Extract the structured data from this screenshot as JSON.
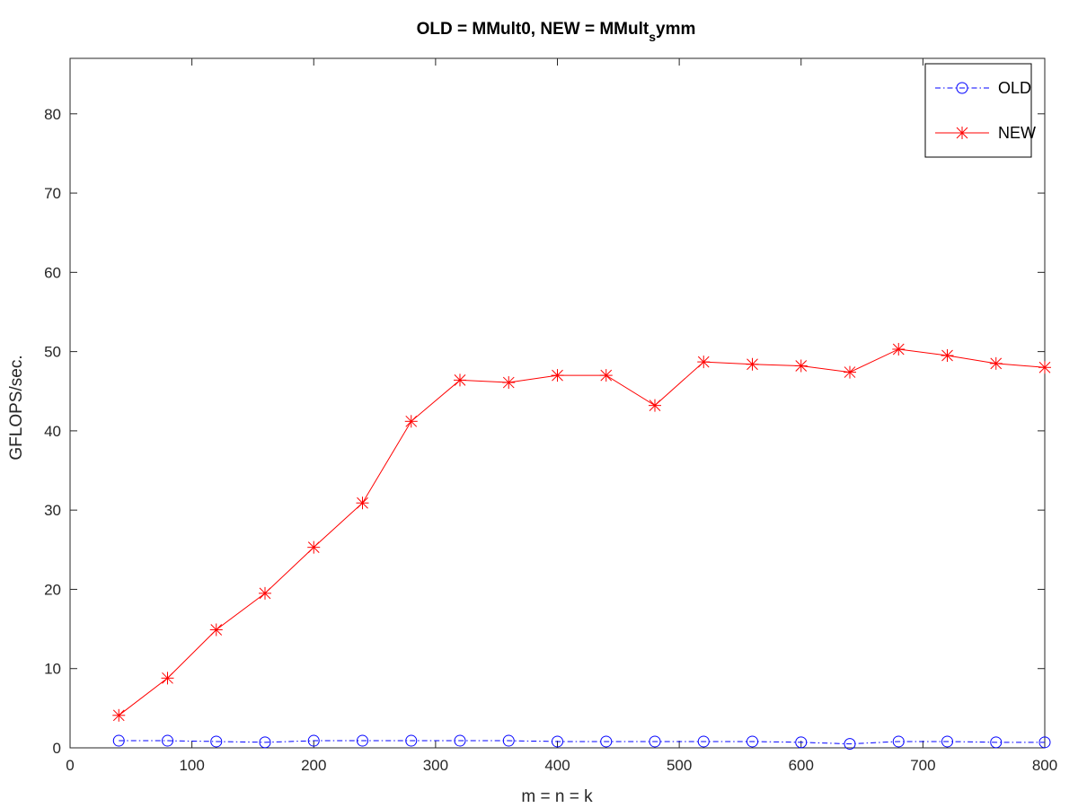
{
  "chart_data": {
    "type": "line",
    "title": "OLD = MMult0, NEW = MMult",
    "title_subscript": "s",
    "title_suffix": "ymm",
    "xlabel": "m = n = k",
    "ylabel": "GFLOPS/sec.",
    "xlim": [
      0,
      800
    ],
    "ylim": [
      0,
      87
    ],
    "xticks": [
      0,
      100,
      200,
      300,
      400,
      500,
      600,
      700,
      800
    ],
    "yticks": [
      0,
      10,
      20,
      30,
      40,
      50,
      60,
      70,
      80
    ],
    "grid": false,
    "legend_position": "top-right",
    "x": [
      40,
      80,
      120,
      160,
      200,
      240,
      280,
      320,
      360,
      400,
      440,
      480,
      520,
      560,
      600,
      640,
      680,
      720,
      760,
      800
    ],
    "series": [
      {
        "name": "OLD",
        "color": "#0000ff",
        "line_style": "dash-dot",
        "marker": "circle",
        "values": [
          0.9,
          0.9,
          0.8,
          0.7,
          0.9,
          0.9,
          0.9,
          0.9,
          0.9,
          0.8,
          0.8,
          0.8,
          0.8,
          0.8,
          0.7,
          0.5,
          0.8,
          0.8,
          0.7,
          0.7
        ]
      },
      {
        "name": "NEW",
        "color": "#ff0000",
        "line_style": "solid",
        "marker": "asterisk",
        "values": [
          4.1,
          8.8,
          14.9,
          19.5,
          25.3,
          30.9,
          41.2,
          46.4,
          46.1,
          47.0,
          47.0,
          43.2,
          48.7,
          48.4,
          48.2,
          47.4,
          50.3,
          49.5,
          48.5,
          48.0
        ]
      }
    ]
  }
}
